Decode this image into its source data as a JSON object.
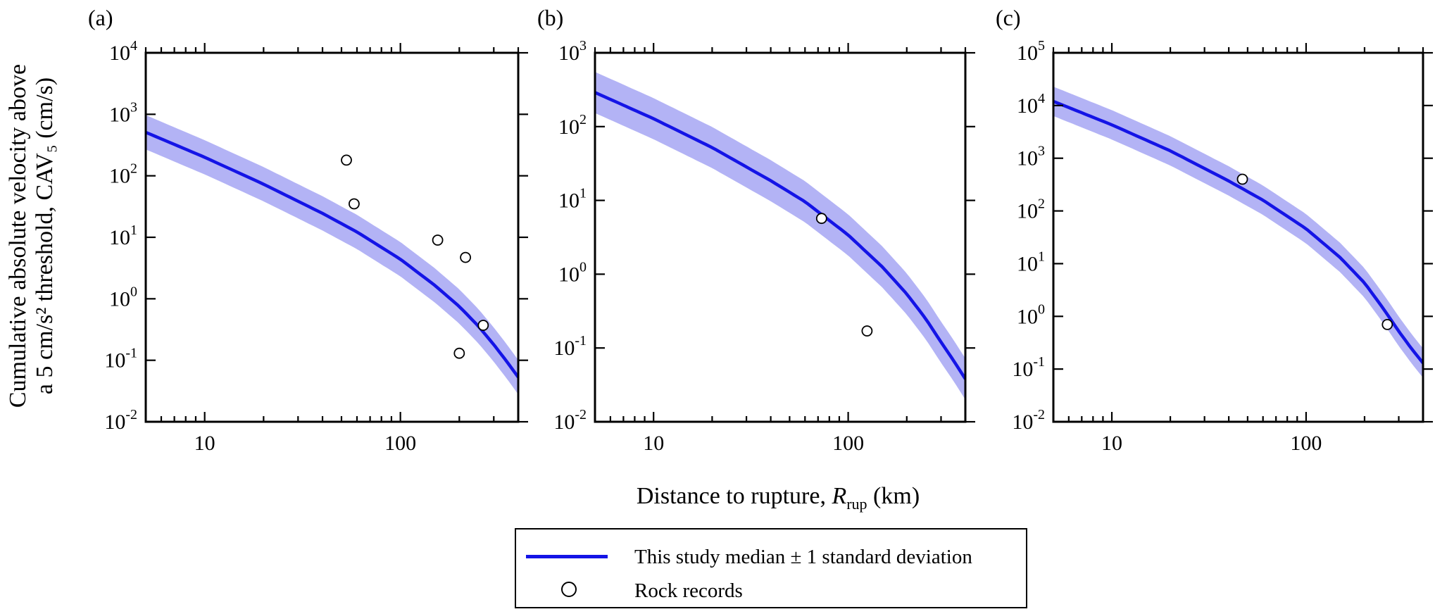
{
  "chart_data": [
    {
      "type": "line",
      "panel_label": "(a)",
      "xscale": "log",
      "yscale": "log",
      "xlim": [
        5,
        400
      ],
      "ylim": [
        0.01,
        10000
      ],
      "ylabel_lines": [
        "Cumulative absolute velocity above",
        "a 5 cm/s² threshold, CAV₅ (cm/s)"
      ],
      "y_ticks": [
        {
          "base": "10",
          "exp": "-2"
        },
        {
          "base": "10",
          "exp": "-1"
        },
        {
          "base": "10",
          "exp": "0"
        },
        {
          "base": "10",
          "exp": "1"
        },
        {
          "base": "10",
          "exp": "2"
        },
        {
          "base": "10",
          "exp": "3"
        },
        {
          "base": "10",
          "exp": "4"
        }
      ],
      "x_ticks": [
        "10",
        "100"
      ],
      "median": {
        "x": [
          5,
          10,
          20,
          40,
          60,
          100,
          150,
          200,
          250,
          300,
          350,
          400
        ],
        "y": [
          510,
          200,
          73,
          24.5,
          12.2,
          4.4,
          1.65,
          0.75,
          0.36,
          0.18,
          0.095,
          0.053
        ]
      },
      "band_factor": 1.9,
      "rock_records": {
        "x": [
          53,
          58,
          155,
          215,
          200,
          265
        ],
        "y": [
          180,
          35,
          9,
          4.7,
          0.13,
          0.37
        ]
      }
    },
    {
      "type": "line",
      "panel_label": "(b)",
      "xscale": "log",
      "yscale": "log",
      "xlim": [
        5,
        400
      ],
      "ylim": [
        0.01,
        1000
      ],
      "y_ticks": [
        {
          "base": "10",
          "exp": "-2"
        },
        {
          "base": "10",
          "exp": "-1"
        },
        {
          "base": "10",
          "exp": "0"
        },
        {
          "base": "10",
          "exp": "1"
        },
        {
          "base": "10",
          "exp": "2"
        },
        {
          "base": "10",
          "exp": "3"
        }
      ],
      "x_ticks": [
        "10",
        "100"
      ],
      "median": {
        "x": [
          5,
          10,
          20,
          40,
          60,
          100,
          150,
          200,
          250,
          300,
          350,
          400
        ],
        "y": [
          290,
          128,
          52,
          18.5,
          9.6,
          3.4,
          1.25,
          0.54,
          0.25,
          0.12,
          0.066,
          0.038
        ]
      },
      "band_factor": 1.9,
      "rock_records": {
        "x": [
          73,
          125
        ],
        "y": [
          5.7,
          0.17
        ]
      }
    },
    {
      "type": "line",
      "panel_label": "(c)",
      "xscale": "log",
      "yscale": "log",
      "xlim": [
        5,
        400
      ],
      "ylim": [
        0.01,
        100000
      ],
      "y_ticks": [
        {
          "base": "10",
          "exp": "-2"
        },
        {
          "base": "10",
          "exp": "-1"
        },
        {
          "base": "10",
          "exp": "0"
        },
        {
          "base": "10",
          "exp": "1"
        },
        {
          "base": "10",
          "exp": "2"
        },
        {
          "base": "10",
          "exp": "3"
        },
        {
          "base": "10",
          "exp": "4"
        },
        {
          "base": "10",
          "exp": "5"
        }
      ],
      "x_ticks": [
        "10",
        "100"
      ],
      "median": {
        "x": [
          5,
          10,
          20,
          40,
          60,
          100,
          150,
          200,
          250,
          300,
          350,
          400
        ],
        "y": [
          12000,
          4300,
          1380,
          370,
          160,
          46,
          13,
          4.3,
          1.4,
          0.52,
          0.24,
          0.13
        ]
      },
      "band_factor": 1.9,
      "rock_records": {
        "x": [
          47,
          262
        ],
        "y": [
          400,
          0.7
        ]
      }
    }
  ],
  "shared": {
    "xlabel_prefix": "Distance to rupture, ",
    "xlabel_symbol": "R",
    "xlabel_subscript": "rup",
    "xlabel_suffix": " (km)"
  },
  "legend": {
    "median_label": "This study median ± 1 standard deviation",
    "records_label": "Rock records"
  },
  "colors": {
    "median_line": "#1414e6",
    "band_fill": "#b3b3f5",
    "axes": "#000000"
  }
}
